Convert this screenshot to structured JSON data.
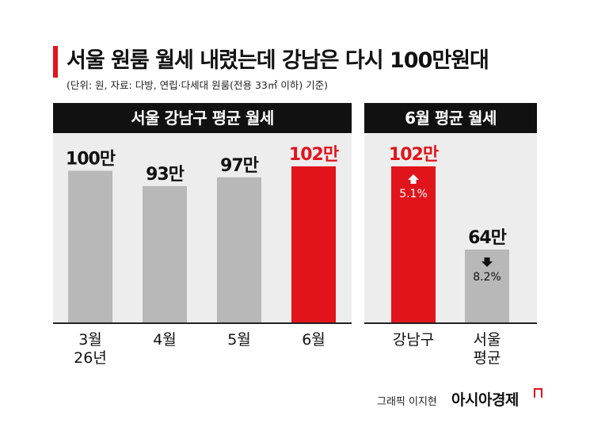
{
  "title": "서울 원룸 월세 내렸는데 강남은 다시 100만원대",
  "subtitle": "(단위: 원, 자료: 다방, 연립·다세대 원룸(전용 33㎡ 이하) 기준)",
  "credit": "그래픽 이지현",
  "brand": "아시아경제",
  "colors": {
    "accent": "#e1141b",
    "bar_gray": "#b8b8b8",
    "panel_bg": "#ededed",
    "header_bg": "#111111"
  },
  "chart_data": [
    {
      "type": "bar",
      "title": "서울 강남구 평균 월세",
      "categories": [
        "3월\n26년",
        "4월",
        "5월",
        "6월"
      ],
      "values": [
        100,
        93,
        97,
        102
      ],
      "data_labels": [
        "100만",
        "93만",
        "97만",
        "102만"
      ],
      "highlight_index": 3
    },
    {
      "type": "bar",
      "title": "6월 평균 월세",
      "categories": [
        "강남구",
        "서울\n평균"
      ],
      "values": [
        102,
        64
      ],
      "data_labels": [
        "102만",
        "64만"
      ],
      "change_labels": [
        "5.1%",
        "8.2%"
      ],
      "change_directions": [
        "up",
        "down"
      ],
      "highlight_index": 0
    }
  ]
}
